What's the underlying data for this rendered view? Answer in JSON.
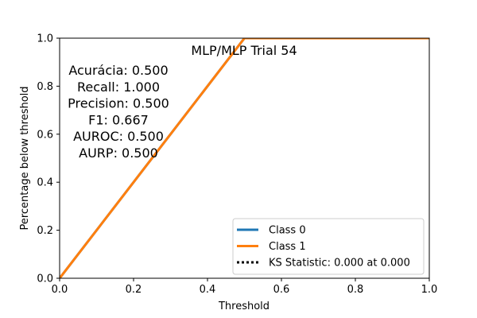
{
  "chart_data": {
    "type": "line",
    "title": "MLP/MLP Trial 54",
    "xlabel": "Threshold",
    "ylabel": "Percentage below threshold",
    "xlim": [
      0.0,
      1.0
    ],
    "ylim": [
      0.0,
      1.0
    ],
    "xticks": [
      "0.0",
      "0.2",
      "0.4",
      "0.6",
      "0.8",
      "1.0"
    ],
    "yticks": [
      "0.0",
      "0.2",
      "0.4",
      "0.6",
      "0.8",
      "1.0"
    ],
    "grid": false,
    "legend_position": "lower-right",
    "series": [
      {
        "name": "Class 0",
        "color": "#1f77b4",
        "style": "solid",
        "x": [
          0.0,
          0.5,
          1.0
        ],
        "y": [
          0.0,
          1.0,
          1.0
        ]
      },
      {
        "name": "Class 1",
        "color": "#ff7f0e",
        "style": "solid",
        "x": [
          0.0,
          0.5,
          1.0
        ],
        "y": [
          0.0,
          1.0,
          1.0
        ]
      }
    ],
    "legend_entries": [
      {
        "label": "Class 0",
        "color": "#1f77b4",
        "style": "solid"
      },
      {
        "label": "Class 1",
        "color": "#ff7f0e",
        "style": "solid"
      },
      {
        "label": "KS Statistic: 0.000 at 0.000",
        "color": "#000000",
        "style": "dotted"
      }
    ],
    "annotations": [
      "Acurácia: 0.500",
      "Recall: 1.000",
      "Precision: 0.500",
      "F1: 0.667",
      "AUROC: 0.500",
      "AURP: 0.500"
    ]
  }
}
